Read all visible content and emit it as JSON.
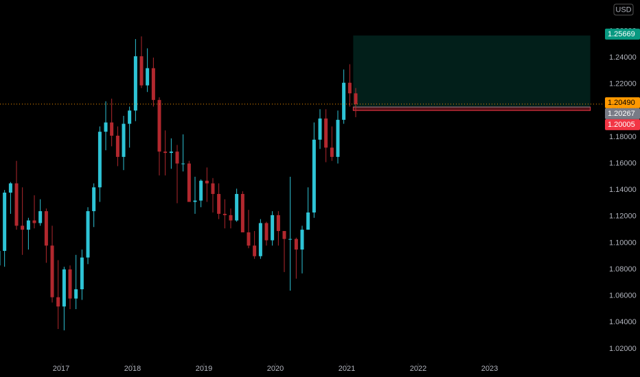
{
  "chart_data": {
    "type": "candlestick",
    "currency": "USD",
    "up_color": "#2ec4d6",
    "down_color": "#b2282e",
    "xlim": [
      2016.144,
      2024.606
    ],
    "xticks": [
      2017,
      2018,
      2019,
      2020,
      2021,
      2022,
      2023
    ],
    "ylim": [
      1.0091,
      1.2835
    ],
    "yticks": [
      {
        "value": 1.02,
        "label": "1.02000"
      },
      {
        "value": 1.04,
        "label": "1.04000"
      },
      {
        "value": 1.06,
        "label": "1.06000"
      },
      {
        "value": 1.08,
        "label": "1.08000"
      },
      {
        "value": 1.1,
        "label": "1.10000"
      },
      {
        "value": 1.12,
        "label": "1.12000"
      },
      {
        "value": 1.14,
        "label": "1.14000"
      },
      {
        "value": 1.16,
        "label": "1.16000"
      },
      {
        "value": 1.18,
        "label": "1.18000"
      },
      {
        "value": 1.2,
        "label": "1.20000"
      },
      {
        "value": 1.22,
        "label": "1.22000"
      },
      {
        "value": 1.24,
        "label": "1.24000"
      },
      {
        "value": 1.26,
        "label": "1.26000"
      }
    ],
    "x": [
      2016.125,
      2016.208,
      2016.292,
      2016.375,
      2016.458,
      2016.542,
      2016.625,
      2016.708,
      2016.792,
      2016.875,
      2016.958,
      2017.042,
      2017.125,
      2017.208,
      2017.292,
      2017.375,
      2017.458,
      2017.542,
      2017.625,
      2017.708,
      2017.792,
      2017.875,
      2017.958,
      2018.042,
      2018.125,
      2018.208,
      2018.292,
      2018.375,
      2018.458,
      2018.542,
      2018.625,
      2018.708,
      2018.792,
      2018.875,
      2018.958,
      2019.042,
      2019.125,
      2019.208,
      2019.292,
      2019.375,
      2019.458,
      2019.542,
      2019.625,
      2019.708,
      2019.792,
      2019.875,
      2019.958,
      2020.042,
      2020.125,
      2020.208,
      2020.292,
      2020.375,
      2020.458,
      2020.542,
      2020.625,
      2020.708,
      2020.792,
      2020.875,
      2020.958,
      2021.042,
      2021.125
    ],
    "open": [
      1.083,
      1.094,
      1.138,
      1.145,
      1.113,
      1.11,
      1.117,
      1.115,
      1.124,
      1.098,
      1.059,
      1.052,
      1.08,
      1.058,
      1.065,
      1.089,
      1.124,
      1.142,
      1.184,
      1.191,
      1.181,
      1.165,
      1.19,
      1.2,
      1.241,
      1.219,
      1.232,
      1.208,
      1.169,
      1.168,
      1.169,
      1.16,
      1.16,
      1.131,
      1.132,
      1.147,
      1.145,
      1.137,
      1.122,
      1.121,
      1.117,
      1.137,
      1.108,
      1.098,
      1.09,
      1.115,
      1.102,
      1.121,
      1.109,
      1.103,
      1.103,
      1.095,
      1.11,
      1.123,
      1.178,
      1.194,
      1.172,
      1.165,
      1.193,
      1.221,
      1.213
    ],
    "high": [
      1.12,
      1.14,
      1.146,
      1.162,
      1.142,
      1.119,
      1.136,
      1.133,
      1.126,
      1.113,
      1.087,
      1.082,
      1.083,
      1.091,
      1.095,
      1.127,
      1.145,
      1.188,
      1.207,
      1.209,
      1.188,
      1.196,
      1.203,
      1.254,
      1.256,
      1.247,
      1.24,
      1.21,
      1.185,
      1.179,
      1.174,
      1.182,
      1.162,
      1.15,
      1.148,
      1.157,
      1.149,
      1.145,
      1.133,
      1.126,
      1.141,
      1.139,
      1.125,
      1.109,
      1.118,
      1.116,
      1.124,
      1.124,
      1.109,
      1.15,
      1.104,
      1.113,
      1.142,
      1.191,
      1.201,
      1.201,
      1.188,
      1.2,
      1.231,
      1.235,
      1.217
    ],
    "low": [
      1.08,
      1.082,
      1.122,
      1.11,
      1.091,
      1.095,
      1.111,
      1.113,
      1.085,
      1.055,
      1.035,
      1.034,
      1.05,
      1.05,
      1.057,
      1.084,
      1.112,
      1.131,
      1.17,
      1.173,
      1.158,
      1.155,
      1.172,
      1.192,
      1.217,
      1.214,
      1.203,
      1.151,
      1.151,
      1.156,
      1.13,
      1.154,
      1.132,
      1.122,
      1.127,
      1.131,
      1.123,
      1.118,
      1.111,
      1.111,
      1.116,
      1.11,
      1.096,
      1.088,
      1.088,
      1.098,
      1.098,
      1.098,
      1.078,
      1.064,
      1.073,
      1.077,
      1.11,
      1.119,
      1.171,
      1.161,
      1.162,
      1.16,
      1.19,
      1.203,
      1.195
    ],
    "close": [
      1.094,
      1.138,
      1.145,
      1.113,
      1.11,
      1.117,
      1.115,
      1.124,
      1.098,
      1.059,
      1.052,
      1.08,
      1.058,
      1.065,
      1.089,
      1.124,
      1.142,
      1.184,
      1.191,
      1.181,
      1.165,
      1.19,
      1.2,
      1.241,
      1.219,
      1.232,
      1.208,
      1.169,
      1.168,
      1.169,
      1.16,
      1.16,
      1.131,
      1.132,
      1.147,
      1.145,
      1.137,
      1.122,
      1.121,
      1.117,
      1.137,
      1.108,
      1.098,
      1.09,
      1.115,
      1.102,
      1.121,
      1.109,
      1.103,
      1.103,
      1.095,
      1.11,
      1.123,
      1.178,
      1.194,
      1.172,
      1.165,
      1.193,
      1.221,
      1.213,
      1.2049
    ],
    "last_price": {
      "value": 1.2049,
      "label": "1.20490",
      "color": "#ff9800"
    },
    "position": {
      "start": 2021.09,
      "end": 2024.41,
      "target": 1.25669,
      "entry": 1.20267,
      "stop": 1.20005,
      "target_color": "#089981",
      "entry_color": "#787b86",
      "stop_color": "#f23645"
    }
  }
}
